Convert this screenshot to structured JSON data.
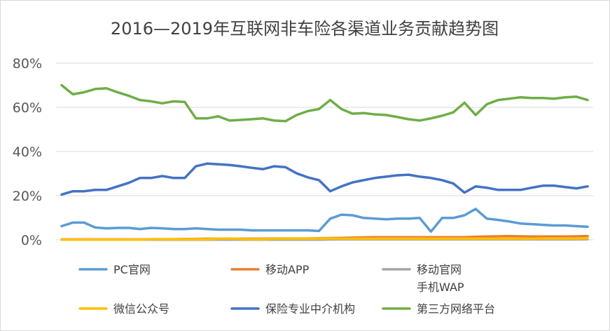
{
  "chart_data": {
    "type": "line",
    "title": "2016—2019年互联网非车险各渠道业务贡献趋势图",
    "xlabel": "",
    "ylabel": "",
    "ylim": [
      0,
      80
    ],
    "y_ticks": [
      0,
      20,
      40,
      60,
      80
    ],
    "y_tick_labels": [
      "0%",
      "20%",
      "40%",
      "60%",
      "80%"
    ],
    "grid": true,
    "legend_position": "bottom",
    "x": [
      1,
      2,
      3,
      4,
      5,
      6,
      7,
      8,
      9,
      10,
      11,
      12,
      13,
      14,
      15,
      16,
      17,
      18,
      19,
      20,
      21,
      22,
      23,
      24,
      25,
      26,
      27,
      28,
      29,
      30,
      31,
      32,
      33,
      34,
      35,
      36,
      37,
      38,
      39,
      40,
      41,
      42,
      43,
      44,
      45,
      46,
      47,
      48
    ],
    "series": [
      {
        "name": "PC官网",
        "color": "#5b9bd5",
        "values": [
          6.2,
          7.8,
          7.8,
          5.6,
          5.2,
          5.4,
          5.4,
          4.9,
          5.4,
          5.2,
          4.9,
          4.9,
          5.2,
          4.9,
          4.6,
          4.6,
          4.6,
          4.3,
          4.3,
          4.3,
          4.3,
          4.3,
          4.3,
          4.0,
          9.6,
          11.4,
          11.1,
          9.9,
          9.6,
          9.3,
          9.6,
          9.6,
          9.9,
          3.7,
          9.9,
          9.9,
          11.1,
          14.0,
          9.6,
          9.0,
          8.3,
          7.4,
          7.1,
          6.8,
          6.5,
          6.5,
          6.2,
          5.9
        ]
      },
      {
        "name": "移动APP",
        "color": "#ed7d31",
        "values": [
          0.2,
          0.2,
          0.2,
          0.2,
          0.2,
          0.2,
          0.2,
          0.2,
          0.3,
          0.3,
          0.3,
          0.4,
          0.4,
          0.5,
          0.5,
          0.5,
          0.5,
          0.5,
          0.5,
          0.6,
          0.6,
          0.6,
          0.6,
          0.7,
          0.8,
          0.9,
          1.0,
          1.1,
          1.2,
          1.2,
          1.2,
          1.2,
          1.2,
          1.2,
          1.2,
          1.2,
          1.2,
          1.4,
          1.5,
          1.6,
          1.7,
          1.6,
          1.5,
          1.5,
          1.5,
          1.5,
          1.6,
          1.7
        ]
      },
      {
        "name": "移动官网手机WAP",
        "label_lines": [
          "移动官网",
          "手机WAP"
        ],
        "color": "#a5a5a5",
        "values": [
          0.1,
          0.1,
          0.1,
          0.1,
          0.1,
          0.1,
          0.1,
          0.1,
          0.1,
          0.1,
          0.1,
          0.1,
          0.1,
          0.1,
          0.1,
          0.1,
          0.1,
          0.1,
          0.1,
          0.1,
          0.1,
          0.1,
          0.1,
          0.1,
          0.2,
          0.2,
          0.2,
          0.2,
          0.2,
          0.2,
          0.2,
          0.2,
          0.2,
          0.2,
          0.2,
          0.2,
          0.2,
          0.2,
          0.2,
          0.2,
          0.2,
          0.2,
          0.2,
          0.2,
          0.2,
          0.2,
          0.2,
          0.3
        ]
      },
      {
        "name": "微信公众号",
        "color": "#ffc000",
        "values": [
          0.1,
          0.1,
          0.1,
          0.1,
          0.1,
          0.1,
          0.1,
          0.1,
          0.3,
          0.3,
          0.3,
          0.3,
          0.3,
          0.3,
          0.5,
          0.6,
          0.4,
          0.3,
          0.3,
          0.5,
          0.5,
          0.5,
          0.5,
          0.6,
          0.6,
          0.5,
          0.5,
          0.5,
          0.5,
          0.5,
          0.5,
          0.5,
          0.5,
          0.5,
          0.5,
          0.5,
          0.5,
          0.5,
          0.5,
          0.5,
          0.5,
          0.5,
          0.5,
          0.6,
          0.6,
          0.6,
          0.6,
          0.7
        ]
      },
      {
        "name": "保险专业中介机构",
        "color": "#4472c4",
        "values": [
          20.5,
          22.0,
          22.0,
          22.6,
          22.6,
          24.2,
          25.8,
          28.0,
          28.0,
          28.9,
          28.0,
          28.0,
          33.3,
          34.5,
          34.2,
          33.9,
          33.3,
          32.6,
          32.0,
          33.3,
          32.9,
          30.1,
          28.3,
          27.0,
          22.0,
          24.2,
          26.0,
          27.0,
          28.0,
          28.6,
          29.2,
          29.5,
          28.6,
          28.0,
          27.0,
          25.5,
          21.4,
          24.2,
          23.6,
          22.6,
          22.6,
          22.6,
          23.6,
          24.5,
          24.5,
          23.9,
          23.3,
          24.2
        ]
      },
      {
        "name": "第三方网络平台",
        "color": "#70ad47",
        "values": [
          70.0,
          65.9,
          66.8,
          68.3,
          68.6,
          66.8,
          65.2,
          63.3,
          62.7,
          61.8,
          62.7,
          62.4,
          55.0,
          55.0,
          55.9,
          54.0,
          54.3,
          54.6,
          55.0,
          54.0,
          53.7,
          56.5,
          58.3,
          59.2,
          63.3,
          59.2,
          57.1,
          57.4,
          56.8,
          56.5,
          55.6,
          54.6,
          54.0,
          55.0,
          56.2,
          57.7,
          62.1,
          56.5,
          61.4,
          63.3,
          63.9,
          64.5,
          64.2,
          64.2,
          63.9,
          64.5,
          64.8,
          63.3
        ]
      }
    ]
  }
}
